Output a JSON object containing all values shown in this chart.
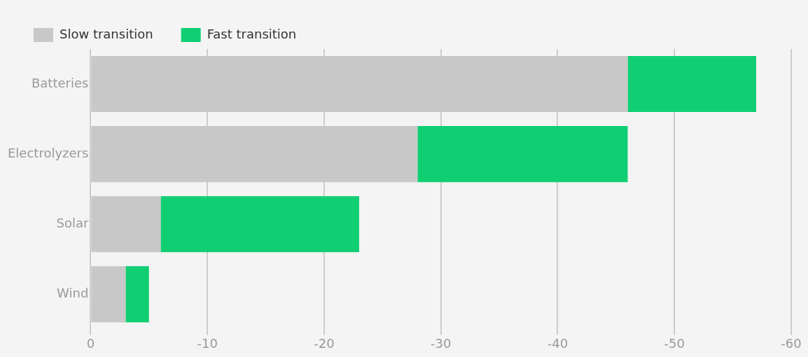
{
  "chart_data": {
    "type": "bar",
    "orientation": "horizontal",
    "stacked": true,
    "categories": [
      "Batteries",
      "Electrolyzers",
      "Solar",
      "Wind"
    ],
    "series": [
      {
        "name": "Slow transition",
        "color": "#c8c8c8",
        "values": [
          -46,
          -28,
          -6,
          -3
        ]
      },
      {
        "name": "Fast transition",
        "color": "#10cf73",
        "values": [
          -11,
          -18,
          -17,
          -2
        ]
      }
    ],
    "xlim": [
      0,
      -60
    ],
    "xticks": [
      0,
      -10,
      -20,
      -30,
      -40,
      -50,
      -60
    ],
    "grid": "x",
    "legend": "top left"
  }
}
